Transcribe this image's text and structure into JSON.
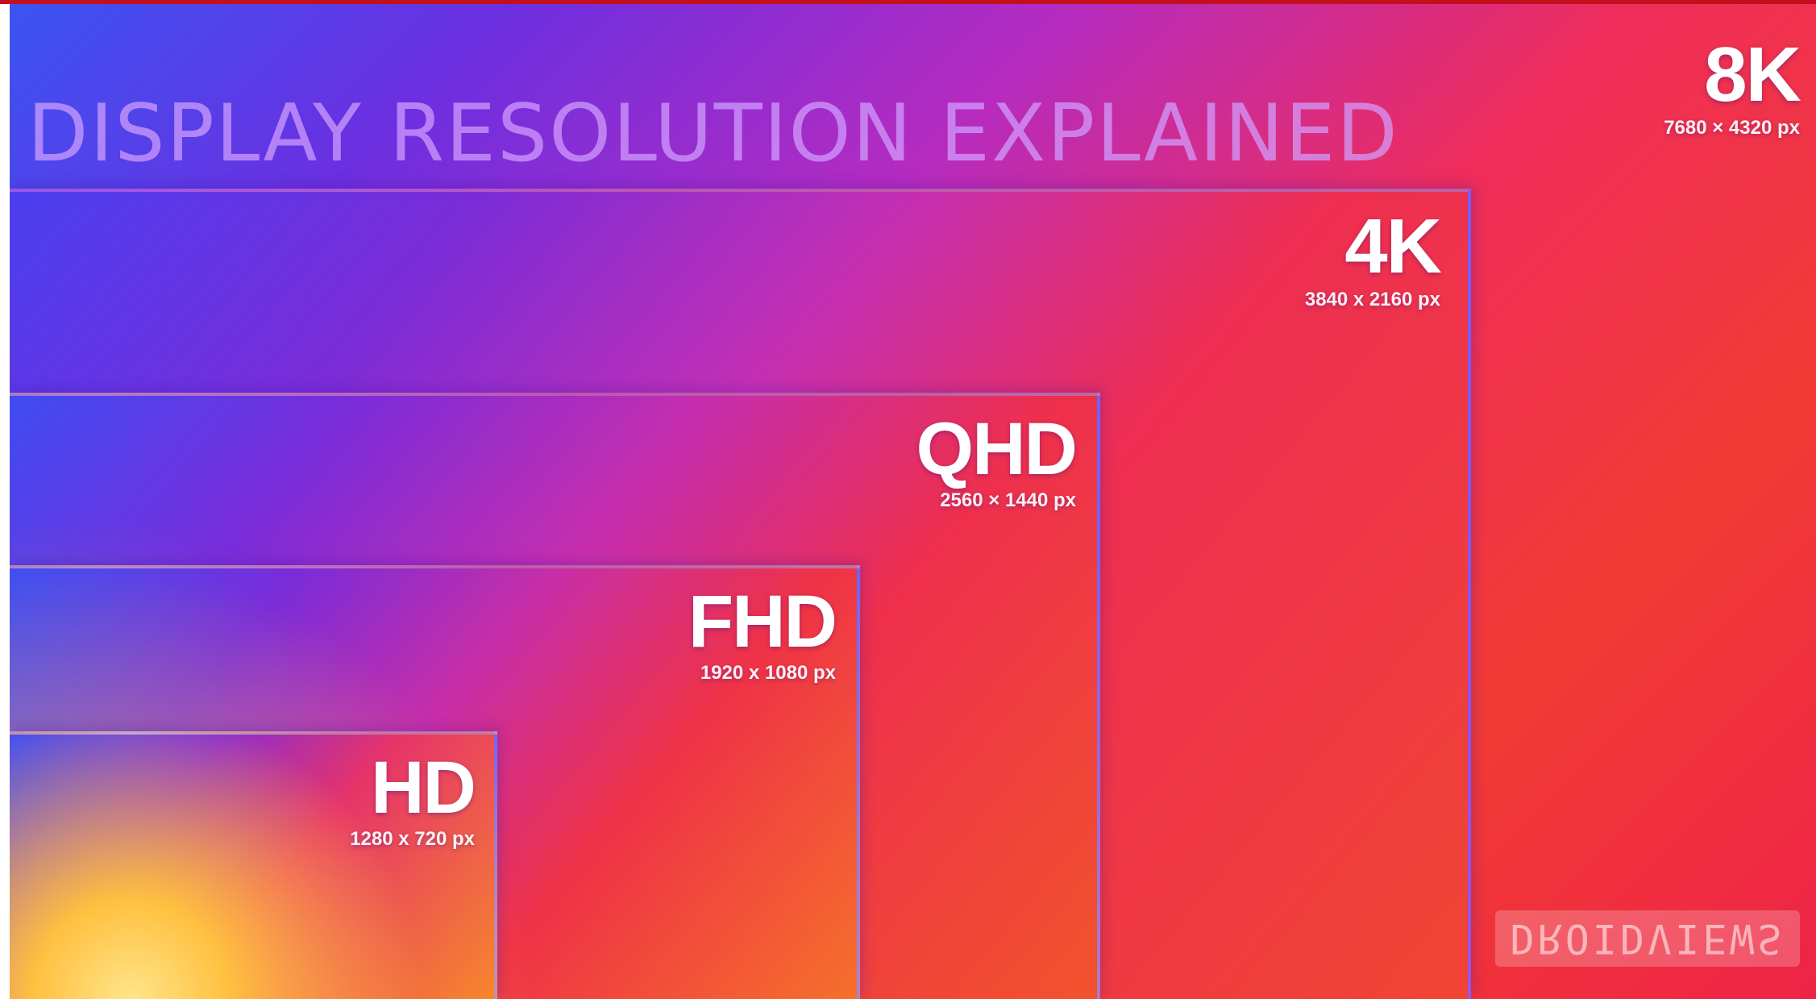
{
  "title": "DISPLAY RESOLUTION EXPLAINED",
  "resolutions": [
    {
      "name": "8K",
      "pixels": "7680 × 4320 px"
    },
    {
      "name": "4K",
      "pixels": "3840 x 2160 px"
    },
    {
      "name": "QHD",
      "pixels": "2560 × 1440 px"
    },
    {
      "name": "FHD",
      "pixels": "1920 x 1080 px"
    },
    {
      "name": "HD",
      "pixels": "1280 x 720 px"
    }
  ],
  "watermark": "DROIDVIEWS",
  "colors": {
    "top_bar": "#c4101d",
    "gradient_blue": "#3a54f2",
    "gradient_purple": "#6c2fe0",
    "gradient_red": "#ef2d5a",
    "glow_yellow": "#ffe98a"
  }
}
